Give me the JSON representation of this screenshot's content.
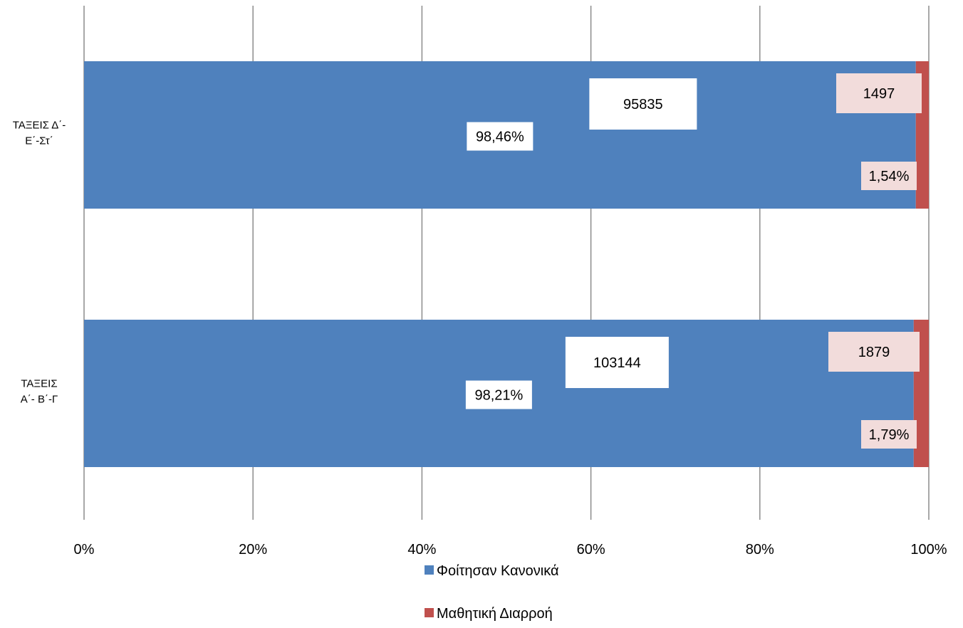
{
  "chart_data": {
    "type": "bar",
    "orientation": "horizontal",
    "stacked": "percent",
    "categories": [
      [
        "ΤΑΞΕΙΣ Δ΄-",
        "Ε΄-Στ΄"
      ],
      [
        "ΤΑΞΕΙΣ",
        "Α΄- Β΄-Γ"
      ]
    ],
    "series": [
      {
        "name": "Φοίτησαν Κανονικά",
        "color": "#4f81bd",
        "counts": [
          95835,
          103144
        ],
        "count_labels": [
          "95835",
          "103144"
        ],
        "percent": [
          98.46,
          98.21
        ],
        "percent_labels": [
          "98,46%",
          "98,21%"
        ]
      },
      {
        "name": "Μαθητική Διαρροή",
        "color": "#c0504d",
        "counts": [
          1497,
          1879
        ],
        "count_labels": [
          "1497",
          "1879"
        ],
        "percent": [
          1.54,
          1.79
        ],
        "percent_labels": [
          "1,54%",
          "1,79%"
        ]
      }
    ],
    "xlim": [
      0,
      100
    ],
    "xticks": [
      "0%",
      "20%",
      "40%",
      "60%",
      "80%",
      "100%"
    ],
    "grid": true,
    "legend_position": "bottom"
  }
}
